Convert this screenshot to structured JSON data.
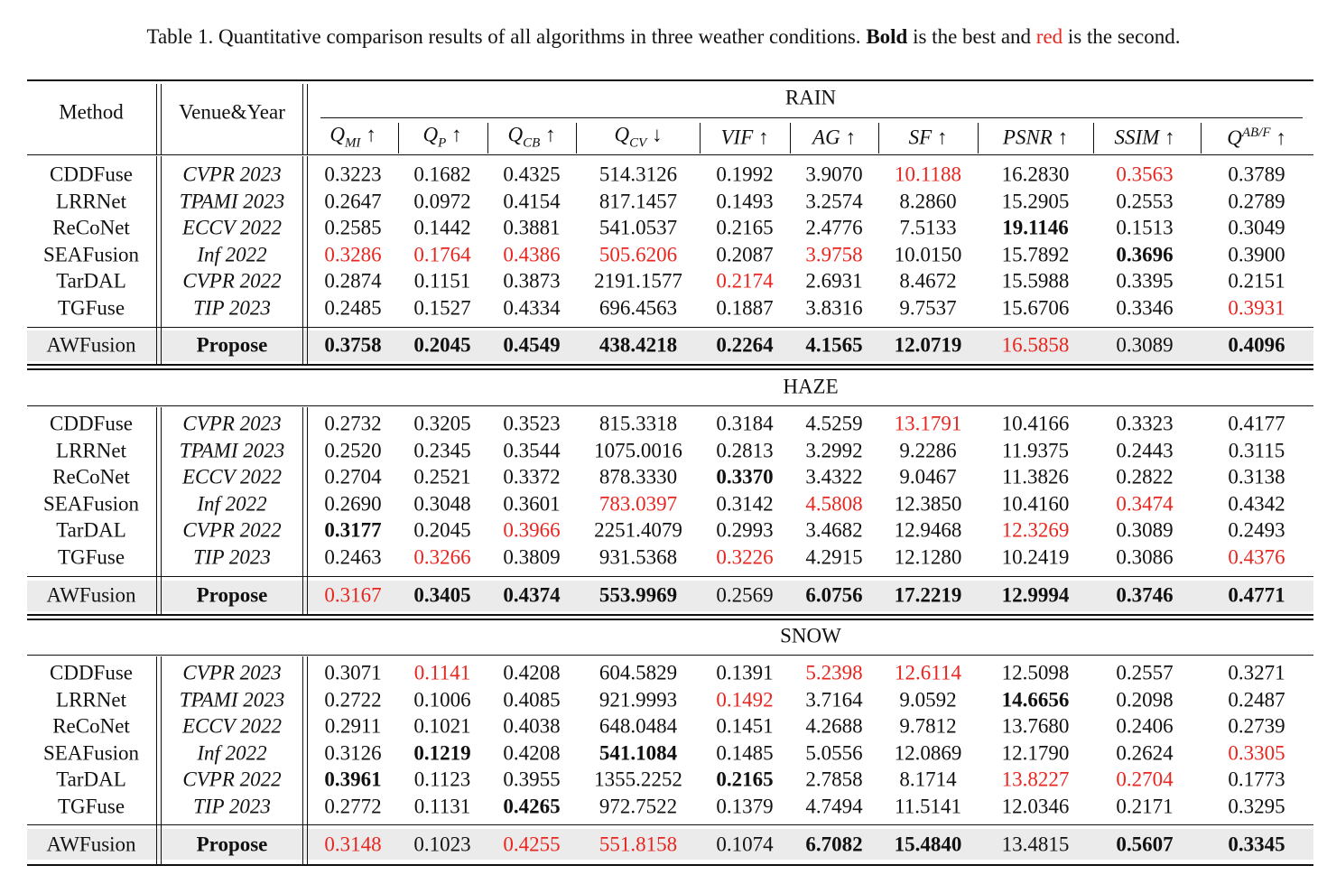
{
  "caption": {
    "prefix": "Table 1. Quantitative comparison results of all algorithms in three weather conditions.",
    "bold_word": "Bold",
    "middle": "is the best and",
    "red_word": "red",
    "suffix": "is the second."
  },
  "header": {
    "method": "Method",
    "venue": "Venue&Year",
    "metrics": [
      {
        "symbol": "Q",
        "sub": "MI",
        "arrow": "↑"
      },
      {
        "symbol": "Q",
        "sub": "P",
        "arrow": "↑"
      },
      {
        "symbol": "Q",
        "sub": "CB",
        "arrow": "↑"
      },
      {
        "symbol": "Q",
        "sub": "CV",
        "arrow": "↓"
      },
      {
        "symbol": "VIF",
        "arrow": "↑"
      },
      {
        "symbol": "AG",
        "arrow": "↑"
      },
      {
        "symbol": "SF",
        "arrow": "↑"
      },
      {
        "symbol": "PSNR",
        "arrow": "↑"
      },
      {
        "symbol": "SSIM",
        "arrow": "↑"
      },
      {
        "symbol": "Q",
        "sup": "AB/F",
        "arrow": "↑"
      }
    ]
  },
  "sections": [
    {
      "title": "RAIN",
      "rows": [
        {
          "method": "CDDFuse",
          "venue": "CVPR 2023",
          "values": [
            "0.3223",
            "0.1682",
            "0.4325",
            "514.3126",
            "0.1992",
            "3.9070",
            "10.1188",
            "16.2830",
            "0.3563",
            "0.3789"
          ],
          "bold_cols": [],
          "red_cols": [
            6,
            8
          ]
        },
        {
          "method": "LRRNet",
          "venue": "TPAMI 2023",
          "values": [
            "0.2647",
            "0.0972",
            "0.4154",
            "817.1457",
            "0.1493",
            "3.2574",
            "8.2860",
            "15.2905",
            "0.2553",
            "0.2789"
          ],
          "bold_cols": [],
          "red_cols": []
        },
        {
          "method": "ReCoNet",
          "venue": "ECCV 2022",
          "values": [
            "0.2585",
            "0.1442",
            "0.3881",
            "541.0537",
            "0.2165",
            "2.4776",
            "7.5133",
            "19.1146",
            "0.1513",
            "0.3049"
          ],
          "bold_cols": [
            7
          ],
          "red_cols": []
        },
        {
          "method": "SEAFusion",
          "venue": "Inf 2022",
          "values": [
            "0.3286",
            "0.1764",
            "0.4386",
            "505.6206",
            "0.2087",
            "3.9758",
            "10.0150",
            "15.7892",
            "0.3696",
            "0.3900"
          ],
          "bold_cols": [
            8
          ],
          "red_cols": [
            0,
            1,
            2,
            3,
            5
          ]
        },
        {
          "method": "TarDAL",
          "venue": "CVPR 2022",
          "values": [
            "0.2874",
            "0.1151",
            "0.3873",
            "2191.1577",
            "0.2174",
            "2.6931",
            "8.4672",
            "15.5988",
            "0.3395",
            "0.2151"
          ],
          "bold_cols": [],
          "red_cols": [
            4
          ]
        },
        {
          "method": "TGFuse",
          "venue": "TIP 2023",
          "values": [
            "0.2485",
            "0.1527",
            "0.4334",
            "696.4563",
            "0.1887",
            "3.8316",
            "9.7537",
            "15.6706",
            "0.3346",
            "0.3931"
          ],
          "bold_cols": [],
          "red_cols": [
            9
          ]
        }
      ],
      "proposed": {
        "method": "AWFusion",
        "venue": "Propose",
        "values": [
          "0.3758",
          "0.2045",
          "0.4549",
          "438.4218",
          "0.2264",
          "4.1565",
          "12.0719",
          "16.5858",
          "0.3089",
          "0.4096"
        ],
        "bold_cols": [
          0,
          1,
          2,
          3,
          4,
          5,
          6,
          9
        ],
        "red_cols": [
          7
        ]
      }
    },
    {
      "title": "HAZE",
      "rows": [
        {
          "method": "CDDFuse",
          "venue": "CVPR 2023",
          "values": [
            "0.2732",
            "0.3205",
            "0.3523",
            "815.3318",
            "0.3184",
            "4.5259",
            "13.1791",
            "10.4166",
            "0.3323",
            "0.4177"
          ],
          "bold_cols": [],
          "red_cols": [
            6
          ]
        },
        {
          "method": "LRRNet",
          "venue": "TPAMI 2023",
          "values": [
            "0.2520",
            "0.2345",
            "0.3544",
            "1075.0016",
            "0.2813",
            "3.2992",
            "9.2286",
            "11.9375",
            "0.2443",
            "0.3115"
          ],
          "bold_cols": [],
          "red_cols": []
        },
        {
          "method": "ReCoNet",
          "venue": "ECCV 2022",
          "values": [
            "0.2704",
            "0.2521",
            "0.3372",
            "878.3330",
            "0.3370",
            "3.4322",
            "9.0467",
            "11.3826",
            "0.2822",
            "0.3138"
          ],
          "bold_cols": [
            4
          ],
          "red_cols": []
        },
        {
          "method": "SEAFusion",
          "venue": "Inf 2022",
          "values": [
            "0.2690",
            "0.3048",
            "0.3601",
            "783.0397",
            "0.3142",
            "4.5808",
            "12.3850",
            "10.4160",
            "0.3474",
            "0.4342"
          ],
          "bold_cols": [],
          "red_cols": [
            3,
            5,
            8
          ]
        },
        {
          "method": "TarDAL",
          "venue": "CVPR 2022",
          "values": [
            "0.3177",
            "0.2045",
            "0.3966",
            "2251.4079",
            "0.2993",
            "3.4682",
            "12.9468",
            "12.3269",
            "0.3089",
            "0.2493"
          ],
          "bold_cols": [
            0
          ],
          "red_cols": [
            2,
            7
          ]
        },
        {
          "method": "TGFuse",
          "venue": "TIP 2023",
          "values": [
            "0.2463",
            "0.3266",
            "0.3809",
            "931.5368",
            "0.3226",
            "4.2915",
            "12.1280",
            "10.2419",
            "0.3086",
            "0.4376"
          ],
          "bold_cols": [],
          "red_cols": [
            1,
            4,
            9
          ]
        }
      ],
      "proposed": {
        "method": "AWFusion",
        "venue": "Propose",
        "values": [
          "0.3167",
          "0.3405",
          "0.4374",
          "553.9969",
          "0.2569",
          "6.0756",
          "17.2219",
          "12.9994",
          "0.3746",
          "0.4771"
        ],
        "bold_cols": [
          1,
          2,
          3,
          5,
          6,
          7,
          8,
          9
        ],
        "red_cols": [
          0
        ]
      }
    },
    {
      "title": "SNOW",
      "rows": [
        {
          "method": "CDDFuse",
          "venue": "CVPR 2023",
          "values": [
            "0.3071",
            "0.1141",
            "0.4208",
            "604.5829",
            "0.1391",
            "5.2398",
            "12.6114",
            "12.5098",
            "0.2557",
            "0.3271"
          ],
          "bold_cols": [],
          "red_cols": [
            1,
            5,
            6
          ]
        },
        {
          "method": "LRRNet",
          "venue": "TPAMI 2023",
          "values": [
            "0.2722",
            "0.1006",
            "0.4085",
            "921.9993",
            "0.1492",
            "3.7164",
            "9.0592",
            "14.6656",
            "0.2098",
            "0.2487"
          ],
          "bold_cols": [
            7
          ],
          "red_cols": [
            4
          ]
        },
        {
          "method": "ReCoNet",
          "venue": "ECCV 2022",
          "values": [
            "0.2911",
            "0.1021",
            "0.4038",
            "648.0484",
            "0.1451",
            "4.2688",
            "9.7812",
            "13.7680",
            "0.2406",
            "0.2739"
          ],
          "bold_cols": [],
          "red_cols": []
        },
        {
          "method": "SEAFusion",
          "venue": "Inf 2022",
          "values": [
            "0.3126",
            "0.1219",
            "0.4208",
            "541.1084",
            "0.1485",
            "5.0556",
            "12.0869",
            "12.1790",
            "0.2624",
            "0.3305"
          ],
          "bold_cols": [
            1,
            3
          ],
          "red_cols": [
            9
          ]
        },
        {
          "method": "TarDAL",
          "venue": "CVPR 2022",
          "values": [
            "0.3961",
            "0.1123",
            "0.3955",
            "1355.2252",
            "0.2165",
            "2.7858",
            "8.1714",
            "13.8227",
            "0.2704",
            "0.1773"
          ],
          "bold_cols": [
            0,
            4
          ],
          "red_cols": [
            7,
            8
          ]
        },
        {
          "method": "TGFuse",
          "venue": "TIP 2023",
          "values": [
            "0.2772",
            "0.1131",
            "0.4265",
            "972.7522",
            "0.1379",
            "4.7494",
            "11.5141",
            "12.0346",
            "0.2171",
            "0.3295"
          ],
          "bold_cols": [
            2
          ],
          "red_cols": []
        }
      ],
      "proposed": {
        "method": "AWFusion",
        "venue": "Propose",
        "values": [
          "0.3148",
          "0.1023",
          "0.4255",
          "551.8158",
          "0.1074",
          "6.7082",
          "15.4840",
          "13.4815",
          "0.5607",
          "0.3345"
        ],
        "bold_cols": [
          5,
          6,
          8,
          9
        ],
        "red_cols": [
          0,
          2,
          3
        ]
      }
    }
  ]
}
